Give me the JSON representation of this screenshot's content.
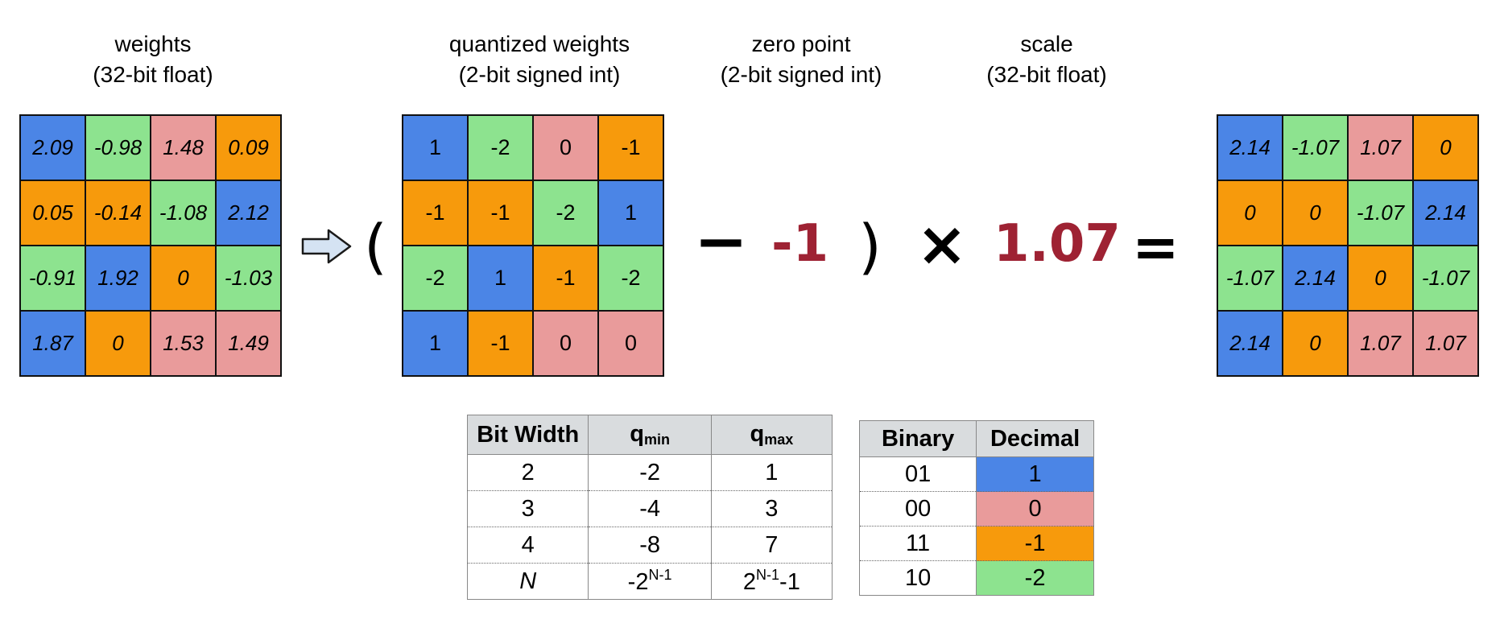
{
  "headers": {
    "weights": {
      "line1": "weights",
      "line2": "(32-bit float)"
    },
    "quantized": {
      "line1": "quantized weights",
      "line2": "(2-bit signed int)"
    },
    "zero_point": {
      "line1": "zero point",
      "line2": "(2-bit signed int)"
    },
    "scale": {
      "line1": "scale",
      "line2": "(32-bit float)"
    }
  },
  "weights_matrix": [
    [
      "2.09",
      "-0.98",
      "1.48",
      "0.09"
    ],
    [
      "0.05",
      "-0.14",
      "-1.08",
      "2.12"
    ],
    [
      "-0.91",
      "1.92",
      "0",
      "-1.03"
    ],
    [
      "1.87",
      "0",
      "1.53",
      "1.49"
    ]
  ],
  "quantized_matrix": [
    [
      "1",
      "-2",
      "0",
      "-1"
    ],
    [
      "-1",
      "-1",
      "-2",
      "1"
    ],
    [
      "-2",
      "1",
      "-1",
      "-2"
    ],
    [
      "1",
      "-1",
      "0",
      "0"
    ]
  ],
  "dequantized_matrix": [
    [
      "2.14",
      "-1.07",
      "1.07",
      "0"
    ],
    [
      "0",
      "0",
      "-1.07",
      "2.14"
    ],
    [
      "-1.07",
      "2.14",
      "0",
      "-1.07"
    ],
    [
      "2.14",
      "0",
      "1.07",
      "1.07"
    ]
  ],
  "formula": {
    "open_paren": "(",
    "minus": "−",
    "zero_point_value": "-1",
    "close_paren": ")",
    "times": "×",
    "scale_value": "1.07",
    "equals": "="
  },
  "colors": {
    "1": "#4b85e6",
    "0": "#e99b9b",
    "-1": "#f79a0c",
    "-2": "#8de38f",
    "highlight": "#9e2233"
  },
  "arrow_icon": "right-arrow-icon",
  "range_table": {
    "headers": {
      "bit_width": "Bit Width",
      "q_min_base": "q",
      "q_min_sub": "min",
      "q_max_base": "q",
      "q_max_sub": "max"
    },
    "rows": [
      {
        "bits": "2",
        "min": "-2",
        "max": "1"
      },
      {
        "bits": "3",
        "min": "-4",
        "max": "3"
      },
      {
        "bits": "4",
        "min": "-8",
        "max": "7"
      }
    ],
    "general": {
      "bits": "N",
      "min_base": "-2",
      "min_exp": "N-1",
      "max_base": "2",
      "max_exp": "N-1",
      "max_tail": "-1"
    }
  },
  "binary_table": {
    "headers": {
      "binary": "Binary",
      "decimal": "Decimal"
    },
    "rows": [
      {
        "binary": "01",
        "decimal": "1"
      },
      {
        "binary": "00",
        "decimal": "0"
      },
      {
        "binary": "11",
        "decimal": "-1"
      },
      {
        "binary": "10",
        "decimal": "-2"
      }
    ]
  }
}
